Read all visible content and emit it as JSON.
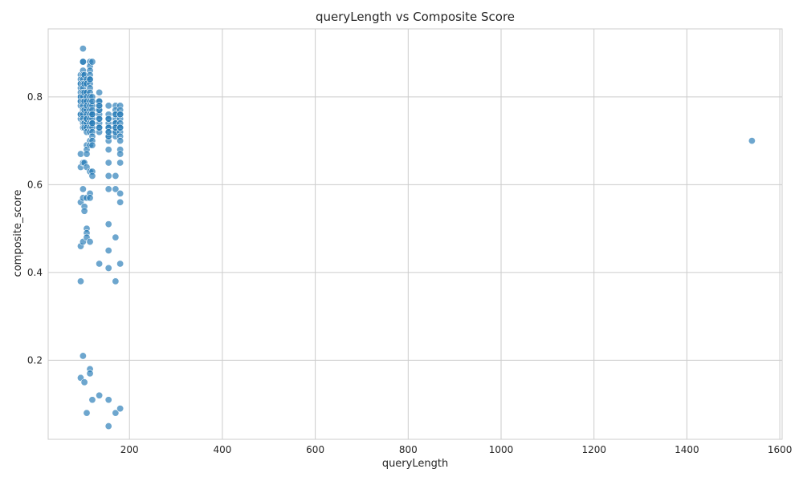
{
  "chart_data": {
    "type": "scatter",
    "title": "queryLength vs Composite Score",
    "xlabel": "queryLength",
    "ylabel": "composite_score",
    "xlim": [
      25,
      1605
    ],
    "ylim": [
      0.02,
      0.955
    ],
    "xticks": [
      200,
      400,
      600,
      800,
      1000,
      1200,
      1400,
      1600
    ],
    "yticks": [
      0.2,
      0.4,
      0.6,
      0.8
    ],
    "xtick_labels": [
      "200",
      "400",
      "600",
      "800",
      "1000",
      "1200",
      "1400",
      "1600"
    ],
    "ytick_labels": [
      "0.2",
      "0.4",
      "0.6",
      "0.8"
    ],
    "grid": true,
    "point_color": "#1f77b4",
    "point_opacity": 0.65,
    "x": [
      95,
      95,
      95,
      95,
      95,
      95,
      95,
      95,
      95,
      95,
      95,
      95,
      95,
      95,
      95,
      95,
      95,
      95,
      95,
      95,
      100,
      100,
      100,
      100,
      100,
      100,
      100,
      100,
      100,
      100,
      100,
      100,
      100,
      100,
      100,
      100,
      100,
      100,
      100,
      100,
      100,
      100,
      103,
      103,
      103,
      103,
      103,
      103,
      103,
      103,
      103,
      103,
      103,
      108,
      108,
      108,
      108,
      108,
      108,
      108,
      108,
      108,
      108,
      108,
      108,
      108,
      108,
      108,
      108,
      108,
      108,
      108,
      108,
      108,
      108,
      115,
      115,
      115,
      115,
      115,
      115,
      115,
      115,
      115,
      115,
      115,
      115,
      115,
      115,
      115,
      115,
      115,
      115,
      115,
      115,
      115,
      115,
      115,
      115,
      115,
      115,
      120,
      120,
      120,
      120,
      120,
      120,
      120,
      120,
      120,
      120,
      120,
      120,
      120,
      120,
      120,
      120,
      120,
      120,
      135,
      135,
      135,
      135,
      135,
      135,
      135,
      135,
      135,
      135,
      135,
      135,
      135,
      135,
      135,
      135,
      155,
      155,
      155,
      155,
      155,
      155,
      155,
      155,
      155,
      155,
      155,
      155,
      155,
      155,
      155,
      155,
      155,
      155,
      155,
      155,
      155,
      170,
      170,
      170,
      170,
      170,
      170,
      170,
      170,
      170,
      170,
      170,
      170,
      170,
      170,
      170,
      170,
      170,
      180,
      180,
      180,
      180,
      180,
      180,
      180,
      180,
      180,
      180,
      180,
      180,
      180,
      180,
      180,
      180,
      180,
      180,
      1540
    ],
    "y": [
      0.85,
      0.84,
      0.83,
      0.82,
      0.81,
      0.8,
      0.79,
      0.78,
      0.76,
      0.75,
      0.67,
      0.64,
      0.56,
      0.46,
      0.38,
      0.16,
      0.83,
      0.8,
      0.79,
      0.76,
      0.91,
      0.88,
      0.86,
      0.85,
      0.84,
      0.83,
      0.82,
      0.81,
      0.8,
      0.79,
      0.78,
      0.77,
      0.76,
      0.75,
      0.74,
      0.73,
      0.65,
      0.59,
      0.57,
      0.47,
      0.21,
      0.88,
      0.85,
      0.83,
      0.81,
      0.79,
      0.77,
      0.74,
      0.73,
      0.65,
      0.55,
      0.54,
      0.15,
      0.84,
      0.83,
      0.81,
      0.8,
      0.79,
      0.77,
      0.76,
      0.75,
      0.74,
      0.73,
      0.72,
      0.69,
      0.68,
      0.67,
      0.64,
      0.57,
      0.5,
      0.49,
      0.48,
      0.08,
      0.78,
      0.75,
      0.88,
      0.87,
      0.86,
      0.85,
      0.84,
      0.83,
      0.82,
      0.81,
      0.8,
      0.79,
      0.78,
      0.77,
      0.76,
      0.75,
      0.74,
      0.73,
      0.72,
      0.7,
      0.69,
      0.63,
      0.58,
      0.57,
      0.47,
      0.18,
      0.17,
      0.84,
      0.88,
      0.8,
      0.78,
      0.77,
      0.76,
      0.75,
      0.74,
      0.73,
      0.72,
      0.71,
      0.7,
      0.69,
      0.63,
      0.62,
      0.11,
      0.79,
      0.76,
      0.74,
      0.81,
      0.79,
      0.78,
      0.77,
      0.76,
      0.75,
      0.74,
      0.73,
      0.72,
      0.79,
      0.77,
      0.75,
      0.73,
      0.42,
      0.12,
      0.78,
      0.78,
      0.76,
      0.75,
      0.74,
      0.73,
      0.72,
      0.71,
      0.7,
      0.68,
      0.65,
      0.62,
      0.59,
      0.51,
      0.45,
      0.41,
      0.11,
      0.05,
      0.75,
      0.73,
      0.71,
      0.72,
      0.78,
      0.77,
      0.76,
      0.75,
      0.74,
      0.73,
      0.72,
      0.71,
      0.62,
      0.59,
      0.48,
      0.38,
      0.08,
      0.76,
      0.74,
      0.72,
      0.73,
      0.78,
      0.77,
      0.76,
      0.75,
      0.74,
      0.73,
      0.72,
      0.71,
      0.7,
      0.68,
      0.67,
      0.65,
      0.58,
      0.56,
      0.42,
      0.09,
      0.76,
      0.73,
      0.7
    ]
  }
}
